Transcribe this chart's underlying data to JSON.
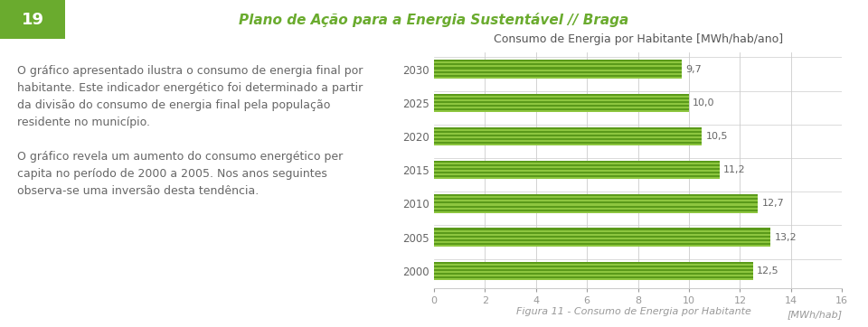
{
  "title": "Consumo de Energia por Habitante [MWh/hab/ano]",
  "xlabel": "[MWh/hab]",
  "caption": "Figura 11 - Consumo de Energia por Habitante",
  "header_num": "19",
  "header_title": "Plano de Ação para a Energia Sustentável // Braga",
  "left_text_lines": [
    "O gráfico apresentado ilustra o consumo de energia final por",
    "habitante. Este indicador energético foi determinado a partir",
    "da divisão do consumo de energia final pela população",
    "residente no município.",
    "",
    "O gráfico revela um aumento do consumo energético per",
    "capita no período de 2000 a 2005. Nos anos seguintes",
    "observa-se uma inversão desta tendência."
  ],
  "years": [
    2000,
    2005,
    2010,
    2015,
    2020,
    2025,
    2030
  ],
  "values": [
    12.5,
    13.2,
    12.7,
    11.2,
    10.5,
    10.0,
    9.7
  ],
  "bar_color_light": "#8DC63F",
  "bar_color_dark": "#5A9A1A",
  "xlim": [
    0,
    16
  ],
  "xticks": [
    0,
    2,
    4,
    6,
    8,
    10,
    12,
    14,
    16
  ],
  "value_labels": [
    "12,5",
    "13,2",
    "12,7",
    "11,2",
    "10,5",
    "10,0",
    "9,7"
  ],
  "bg_color": "#f0f0eb",
  "white": "#ffffff",
  "header_bg": "#8DC63F",
  "header_num_bg": "#6AAB2E",
  "title_color": "#555555",
  "label_color": "#666666",
  "tick_color": "#999999",
  "caption_color": "#999999",
  "header_text_color": "#6AAB2E",
  "bar_height": 0.55,
  "figsize": [
    9.6,
    3.62
  ],
  "dpi": 100
}
